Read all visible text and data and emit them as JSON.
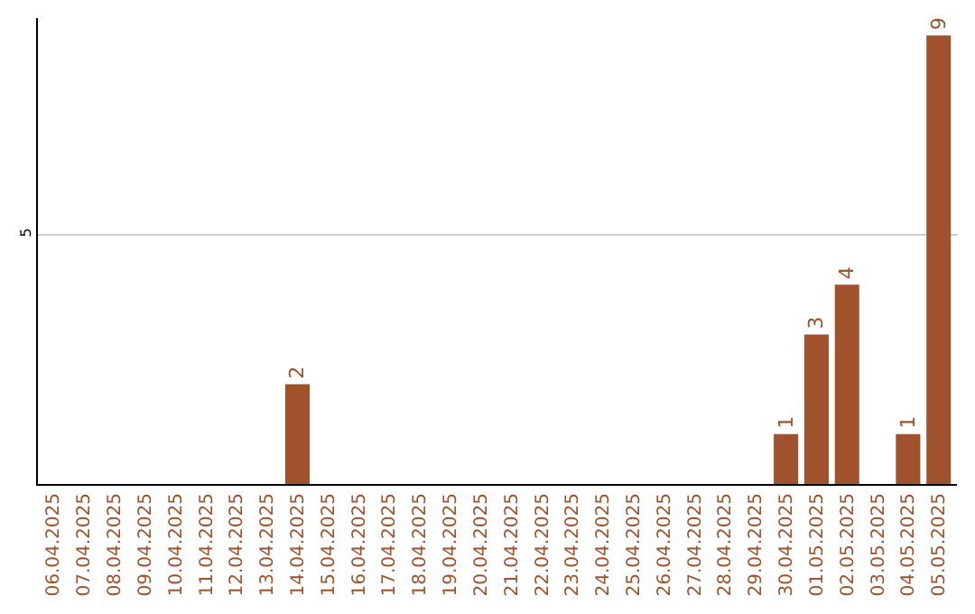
{
  "chart_data": {
    "type": "bar",
    "categories": [
      "06.04.2025",
      "07.04.2025",
      "08.04.2025",
      "09.04.2025",
      "10.04.2025",
      "11.04.2025",
      "12.04.2025",
      "13.04.2025",
      "14.04.2025",
      "15.04.2025",
      "16.04.2025",
      "17.04.2025",
      "18.04.2025",
      "19.04.2025",
      "20.04.2025",
      "21.04.2025",
      "22.04.2025",
      "23.04.2025",
      "24.04.2025",
      "25.04.2025",
      "26.04.2025",
      "27.04.2025",
      "28.04.2025",
      "29.04.2025",
      "30.04.2025",
      "01.05.2025",
      "02.05.2025",
      "03.05.2025",
      "04.05.2025",
      "05.05.2025"
    ],
    "values": [
      0,
      0,
      0,
      0,
      0,
      0,
      0,
      0,
      2,
      0,
      0,
      0,
      0,
      0,
      0,
      0,
      0,
      0,
      0,
      0,
      0,
      0,
      0,
      0,
      1,
      3,
      4,
      0,
      1,
      9
    ],
    "value_labels": [
      null,
      null,
      null,
      null,
      null,
      null,
      null,
      null,
      "2",
      null,
      null,
      null,
      null,
      null,
      null,
      null,
      null,
      null,
      null,
      null,
      null,
      null,
      null,
      null,
      "1",
      "3",
      "4",
      null,
      "1",
      "9"
    ],
    "color": "#a0522d",
    "ylim": [
      0,
      9.35
    ],
    "yticks": [
      5
    ],
    "grid": "y"
  }
}
